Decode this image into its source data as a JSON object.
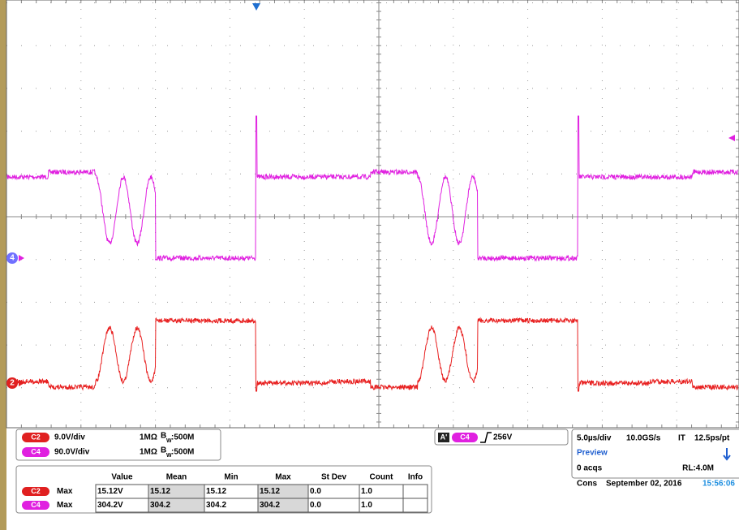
{
  "channels": [
    {
      "badge": "C2",
      "scale": "9.0V/div",
      "impedance": "1MΩ",
      "bw_prefix": "B",
      "bw_sub": "W",
      "bw_value": ":500M"
    },
    {
      "badge": "C4",
      "scale": "90.0V/div",
      "impedance": "1MΩ",
      "bw_prefix": "B",
      "bw_sub": "W",
      "bw_value": ":500M"
    }
  ],
  "markers": {
    "channel_4": "4",
    "channel_2": "2"
  },
  "trigger": {
    "badge": "A'",
    "source": "C4",
    "level": "256V"
  },
  "timebase": {
    "scale": "5.0µs/div",
    "rate": "10.0GS/s",
    "mode": "IT",
    "resolution": "12.5ps/pt",
    "status": "Preview",
    "acqs": "0 acqs",
    "record": "RL:4.0M",
    "run": "Cons",
    "date": "September 02, 2016",
    "time": "15:56:06"
  },
  "measurements": {
    "headers": [
      "Value",
      "Mean",
      "Min",
      "Max",
      "St Dev",
      "Count",
      "Info"
    ],
    "rows": [
      {
        "channel": "C2",
        "type": "Max",
        "cells": [
          "15.12V",
          "15.12",
          "15.12",
          "15.12",
          "0.0",
          "1.0"
        ]
      },
      {
        "channel": "C4",
        "type": "Max",
        "cells": [
          "304.2V",
          "304.2",
          "304.2",
          "304.2",
          "0.0",
          "1.0"
        ]
      }
    ]
  }
}
